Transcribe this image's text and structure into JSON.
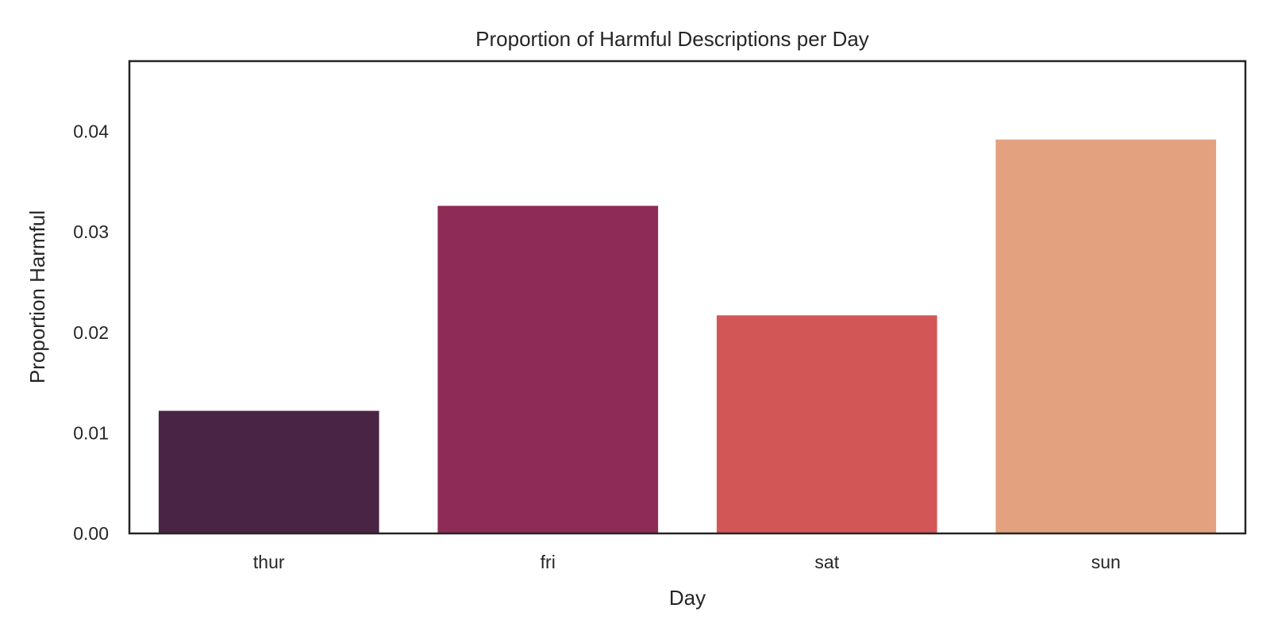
{
  "chart_data": {
    "type": "bar",
    "title": "Proportion of Harmful Descriptions per Day",
    "xlabel": "Day",
    "ylabel": "Proportion Harmful",
    "categories": [
      "thur",
      "fri",
      "sat",
      "sun"
    ],
    "values": [
      0.0122,
      0.0326,
      0.0217,
      0.0392
    ],
    "colors": [
      "#4a2444",
      "#8f2b57",
      "#d25656",
      "#e4a180"
    ],
    "ylim": [
      0,
      0.047
    ],
    "yticks": [
      {
        "value": 0.0,
        "label": "0.00"
      },
      {
        "value": 0.01,
        "label": "0.01"
      },
      {
        "value": 0.02,
        "label": "0.02"
      },
      {
        "value": 0.03,
        "label": "0.03"
      },
      {
        "value": 0.04,
        "label": "0.04"
      }
    ],
    "grid": false,
    "legend": "none"
  }
}
